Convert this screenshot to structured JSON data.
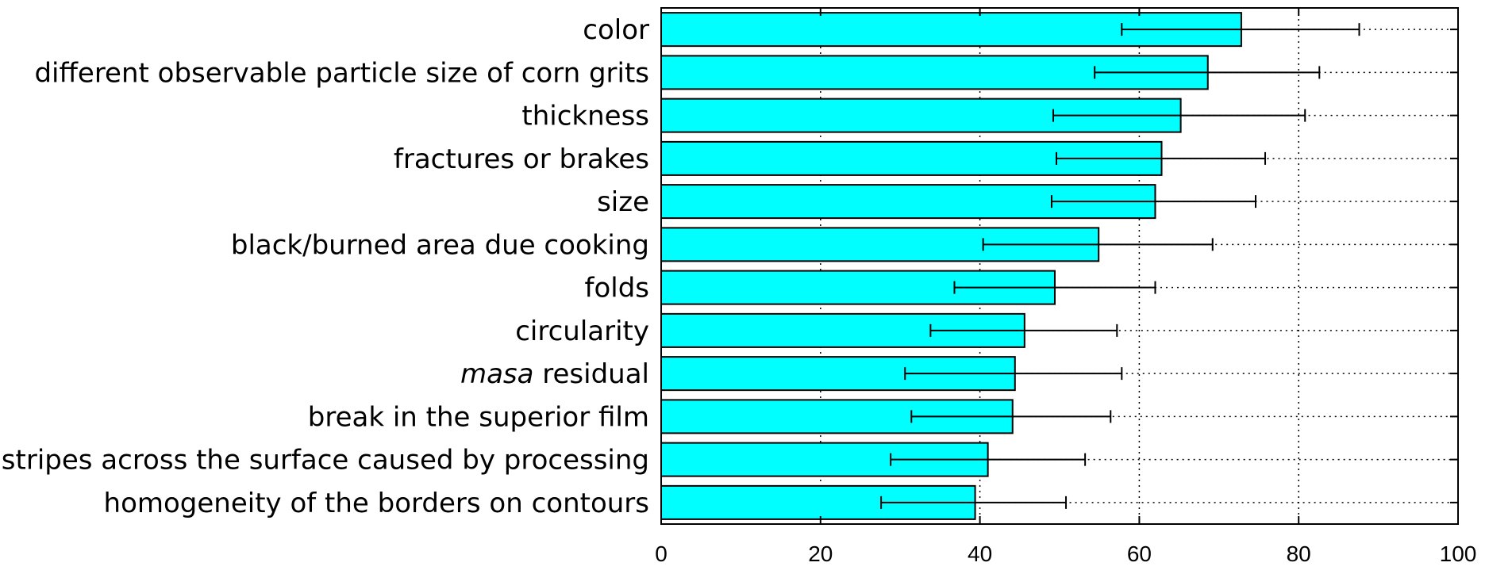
{
  "chart_data": {
    "type": "bar",
    "orientation": "horizontal",
    "title": "",
    "xlabel": "",
    "ylabel": "",
    "xlim": [
      0,
      100
    ],
    "xticks": [
      0,
      20,
      40,
      60,
      80,
      100
    ],
    "xtick_labels": [
      "0",
      "20",
      "40",
      "60",
      "80",
      "100"
    ],
    "grid": "vertical dotted",
    "bar_color": "#00ffff",
    "categories": [
      {
        "label": "color",
        "value": 72.8,
        "err_low": 57.8,
        "err_high": 87.6
      },
      {
        "label": "different observable particle size of corn grits",
        "value": 68.6,
        "err_low": 54.4,
        "err_high": 82.6
      },
      {
        "label": "thickness",
        "value": 65.2,
        "err_low": 49.2,
        "err_high": 80.8
      },
      {
        "label": "fractures or brakes",
        "value": 62.8,
        "err_low": 49.6,
        "err_high": 75.8
      },
      {
        "label": "size",
        "value": 62.0,
        "err_low": 49.0,
        "err_high": 74.6
      },
      {
        "label": "black/burned area due cooking",
        "value": 54.9,
        "err_low": 40.4,
        "err_high": 69.2
      },
      {
        "label": "folds",
        "value": 49.4,
        "err_low": 36.8,
        "err_high": 62.0
      },
      {
        "label": "circularity",
        "value": 45.6,
        "err_low": 33.8,
        "err_high": 57.2
      },
      {
        "label_italic": "masa",
        "label": " residual",
        "value": 44.4,
        "err_low": 30.6,
        "err_high": 57.8
      },
      {
        "label": "break in the superior film",
        "value": 44.1,
        "err_low": 31.4,
        "err_high": 56.4
      },
      {
        "label": "stripes across the surface caused by processing",
        "value": 41.0,
        "err_low": 28.8,
        "err_high": 53.2
      },
      {
        "label": "homogeneity of the borders on contours",
        "value": 39.4,
        "err_low": 27.6,
        "err_high": 50.8
      }
    ]
  }
}
